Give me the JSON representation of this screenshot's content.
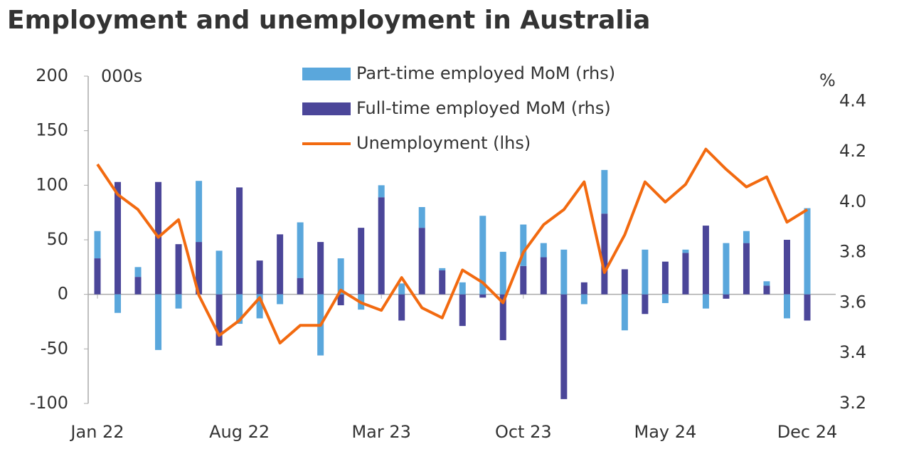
{
  "chart_data": {
    "type": "bar",
    "title": "Employment and unemployment in Australia",
    "y_unit": "000s",
    "y2_unit": "%",
    "categories": [
      "Jan 22",
      null,
      null,
      null,
      null,
      null,
      null,
      "Aug 22",
      null,
      null,
      null,
      null,
      null,
      null,
      "Mar 23",
      null,
      null,
      null,
      null,
      null,
      null,
      "Oct 23",
      null,
      null,
      null,
      null,
      null,
      null,
      "May 24",
      null,
      null,
      null,
      null,
      null,
      null,
      "Dec 24"
    ],
    "ylim": [
      -100,
      200
    ],
    "yticks": [
      -100,
      -50,
      0,
      50,
      100,
      150,
      200
    ],
    "y2lim": [
      3.2,
      4.5
    ],
    "y2ticks": [
      3.2,
      3.4,
      3.6,
      3.8,
      {
        "value": 4.0,
        "label": "4.0"
      },
      4.2,
      4.4
    ],
    "series": [
      {
        "name": "Part-time employed MoM (rhs)",
        "type": "bar",
        "color": "#5aa7dc",
        "values": [
          25,
          -17,
          9,
          -51,
          -13,
          56,
          40,
          -27,
          -22,
          -9,
          51,
          -56,
          33,
          -14,
          11,
          10,
          19,
          2,
          11,
          72,
          39,
          38,
          13,
          41,
          -9,
          40,
          -33,
          41,
          -8,
          3,
          -13,
          47,
          11,
          4,
          -22,
          79
        ]
      },
      {
        "name": "Full-time employed MoM (rhs)",
        "type": "bar",
        "color": "#4b4699",
        "values": [
          33,
          103,
          16,
          103,
          46,
          48,
          -47,
          98,
          31,
          55,
          15,
          48,
          -10,
          61,
          89,
          -24,
          61,
          22,
          -29,
          -3,
          -42,
          26,
          34,
          -96,
          11,
          74,
          23,
          -18,
          30,
          38,
          63,
          -4,
          47,
          8,
          50,
          -24
        ]
      },
      {
        "name": "Unemployment (lhs)",
        "type": "line",
        "axis": "y2",
        "color": "#f26a10",
        "values": [
          4.15,
          4.03,
          3.97,
          3.86,
          3.93,
          3.63,
          3.47,
          3.53,
          3.62,
          3.44,
          3.51,
          3.51,
          3.65,
          3.6,
          3.57,
          3.7,
          3.58,
          3.54,
          3.73,
          3.68,
          3.6,
          3.8,
          3.91,
          3.97,
          4.08,
          3.72,
          3.87,
          4.08,
          4.0,
          4.07,
          4.21,
          4.13,
          4.06,
          4.1,
          3.92,
          3.97
        ]
      }
    ]
  }
}
